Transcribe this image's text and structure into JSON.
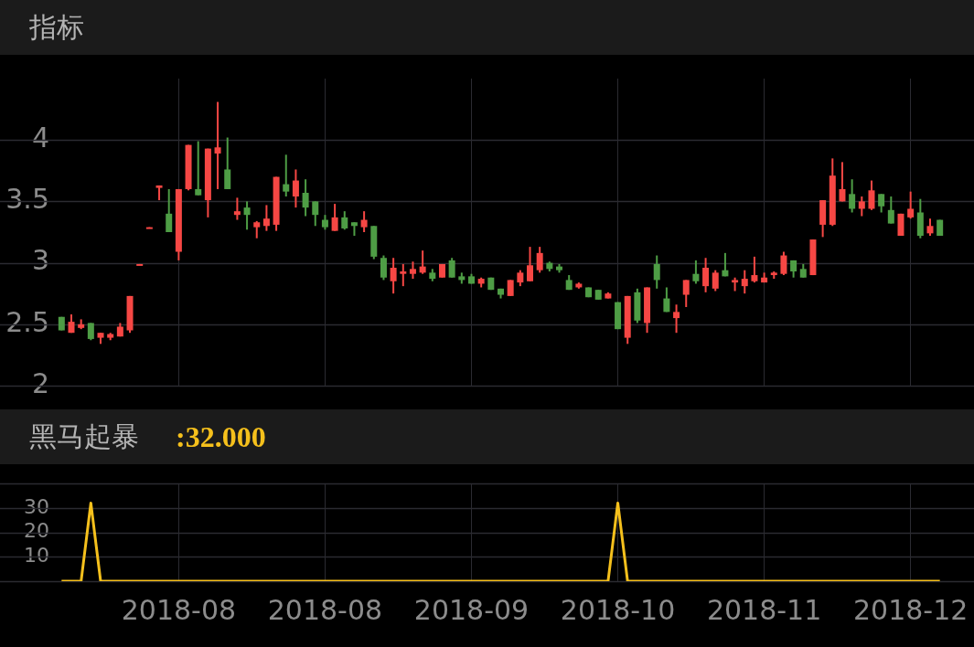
{
  "chart_data": [
    {
      "type": "candlestick",
      "title": "指标",
      "categories": [
        null,
        null,
        null,
        null,
        null,
        null,
        null,
        null,
        null,
        null,
        null,
        null,
        "2018-08",
        null,
        null,
        null,
        null,
        null,
        null,
        null,
        null,
        null,
        null,
        null,
        null,
        null,
        null,
        "2018-08",
        null,
        null,
        null,
        null,
        null,
        null,
        null,
        null,
        null,
        null,
        null,
        null,
        null,
        null,
        "2018-09",
        null,
        null,
        null,
        null,
        null,
        null,
        null,
        null,
        null,
        null,
        null,
        null,
        null,
        null,
        "2018-10",
        null,
        null,
        null,
        null,
        null,
        null,
        null,
        null,
        null,
        null,
        null,
        null,
        null,
        null,
        "2018-11",
        null,
        null,
        null,
        null,
        null,
        null,
        null,
        null,
        null,
        null,
        null,
        null,
        null,
        null,
        "2018-12",
        null,
        null,
        null
      ],
      "ohlc": [
        [
          2.56,
          2.56,
          2.45,
          2.45
        ],
        [
          2.43,
          2.58,
          2.43,
          2.52
        ],
        [
          2.47,
          2.54,
          2.46,
          2.5
        ],
        [
          2.51,
          2.51,
          2.37,
          2.38
        ],
        [
          2.39,
          2.43,
          2.34,
          2.43
        ],
        [
          2.39,
          2.43,
          2.37,
          2.42
        ],
        [
          2.4,
          2.51,
          2.4,
          2.48
        ],
        [
          2.45,
          2.73,
          2.43,
          2.73
        ],
        [
          2.98,
          2.99,
          2.98,
          2.99
        ],
        [
          3.28,
          3.29,
          3.28,
          3.29
        ],
        [
          3.61,
          3.63,
          3.51,
          3.63
        ],
        [
          3.4,
          3.6,
          3.25,
          3.25
        ],
        [
          3.09,
          3.6,
          3.02,
          3.6
        ],
        [
          3.6,
          3.96,
          3.59,
          3.96
        ],
        [
          3.6,
          3.99,
          3.55,
          3.55
        ],
        [
          3.51,
          3.93,
          3.37,
          3.93
        ],
        [
          3.89,
          4.31,
          3.6,
          3.94
        ],
        [
          3.76,
          4.02,
          3.6,
          3.6
        ],
        [
          3.39,
          3.53,
          3.35,
          3.42
        ],
        [
          3.45,
          3.5,
          3.27,
          3.39
        ],
        [
          3.29,
          3.34,
          3.2,
          3.33
        ],
        [
          3.3,
          3.47,
          3.26,
          3.36
        ],
        [
          3.31,
          3.7,
          3.26,
          3.7
        ],
        [
          3.64,
          3.88,
          3.54,
          3.58
        ],
        [
          3.54,
          3.76,
          3.45,
          3.67
        ],
        [
          3.57,
          3.68,
          3.38,
          3.45
        ],
        [
          3.5,
          3.5,
          3.3,
          3.39
        ],
        [
          3.35,
          3.39,
          3.27,
          3.29
        ],
        [
          3.26,
          3.48,
          3.26,
          3.37
        ],
        [
          3.37,
          3.42,
          3.27,
          3.28
        ],
        [
          3.33,
          3.33,
          3.22,
          3.3
        ],
        [
          3.29,
          3.42,
          3.25,
          3.35
        ],
        [
          3.3,
          3.3,
          3.03,
          3.05
        ],
        [
          3.04,
          3.06,
          2.86,
          2.88
        ],
        [
          2.85,
          3.04,
          2.75,
          2.96
        ],
        [
          2.91,
          2.99,
          2.81,
          2.93
        ],
        [
          2.91,
          3.01,
          2.87,
          2.95
        ],
        [
          2.92,
          3.1,
          2.91,
          2.97
        ],
        [
          2.92,
          2.95,
          2.85,
          2.87
        ],
        [
          2.88,
          2.99,
          2.88,
          2.99
        ],
        [
          3.02,
          3.04,
          2.88,
          2.88
        ],
        [
          2.89,
          2.92,
          2.83,
          2.86
        ],
        [
          2.89,
          2.91,
          2.83,
          2.83
        ],
        [
          2.83,
          2.88,
          2.8,
          2.87
        ],
        [
          2.88,
          2.88,
          2.78,
          2.78
        ],
        [
          2.79,
          2.79,
          2.71,
          2.74
        ],
        [
          2.73,
          2.86,
          2.73,
          2.86
        ],
        [
          2.84,
          2.94,
          2.81,
          2.92
        ],
        [
          2.85,
          3.13,
          2.85,
          2.98
        ],
        [
          2.94,
          3.13,
          2.92,
          3.08
        ],
        [
          3.0,
          3.01,
          2.93,
          2.95
        ],
        [
          2.97,
          2.99,
          2.92,
          2.94
        ],
        [
          2.86,
          2.9,
          2.78,
          2.78
        ],
        [
          2.8,
          2.84,
          2.79,
          2.83
        ],
        [
          2.8,
          2.8,
          2.72,
          2.72
        ],
        [
          2.78,
          2.78,
          2.7,
          2.7
        ],
        [
          2.71,
          2.76,
          2.71,
          2.75
        ],
        [
          2.68,
          2.68,
          2.46,
          2.46
        ],
        [
          2.39,
          2.73,
          2.34,
          2.73
        ],
        [
          2.76,
          2.79,
          2.51,
          2.53
        ],
        [
          2.51,
          2.8,
          2.43,
          2.8
        ],
        [
          2.99,
          3.06,
          2.79,
          2.86
        ],
        [
          2.71,
          2.8,
          2.6,
          2.6
        ],
        [
          2.55,
          2.66,
          2.43,
          2.6
        ],
        [
          2.74,
          2.86,
          2.64,
          2.86
        ],
        [
          2.91,
          3.02,
          2.83,
          2.85
        ],
        [
          2.81,
          3.04,
          2.76,
          2.96
        ],
        [
          2.79,
          2.94,
          2.77,
          2.92
        ],
        [
          2.94,
          3.08,
          2.89,
          2.89
        ],
        [
          2.84,
          2.88,
          2.77,
          2.86
        ],
        [
          2.81,
          2.94,
          2.75,
          2.87
        ],
        [
          2.85,
          3.05,
          2.84,
          2.9
        ],
        [
          2.84,
          2.92,
          2.84,
          2.88
        ],
        [
          2.9,
          2.93,
          2.87,
          2.92
        ],
        [
          2.91,
          3.09,
          2.9,
          3.06
        ],
        [
          3.02,
          3.02,
          2.88,
          2.93
        ],
        [
          2.95,
          2.99,
          2.88,
          2.88
        ],
        [
          2.9,
          3.19,
          2.9,
          3.19
        ],
        [
          3.31,
          3.51,
          3.21,
          3.51
        ],
        [
          3.31,
          3.85,
          3.3,
          3.71
        ],
        [
          3.5,
          3.82,
          3.5,
          3.6
        ],
        [
          3.56,
          3.68,
          3.41,
          3.44
        ],
        [
          3.44,
          3.54,
          3.38,
          3.5
        ],
        [
          3.44,
          3.67,
          3.43,
          3.59
        ],
        [
          3.56,
          3.56,
          3.41,
          3.46
        ],
        [
          3.43,
          3.54,
          3.32,
          3.32
        ],
        [
          3.22,
          3.4,
          3.22,
          3.4
        ],
        [
          3.37,
          3.58,
          3.36,
          3.44
        ],
        [
          3.41,
          3.52,
          3.2,
          3.22
        ],
        [
          3.24,
          3.36,
          3.22,
          3.3
        ],
        [
          3.35,
          3.35,
          3.22,
          3.22
        ]
      ],
      "colors": [
        "#4e9d45",
        "#f64744",
        "#f64744",
        "#4e9d45",
        "#f64744",
        "#f64744",
        "#f64744",
        "#f64744",
        "#f64744",
        "#f64744",
        "#f64744",
        "#4e9d45",
        "#f64744",
        "#f64744",
        "#4e9d45",
        "#f64744",
        "#f64744",
        "#4e9d45",
        "#f64744",
        "#4e9d45",
        "#f64744",
        "#f64744",
        "#f64744",
        "#4e9d45",
        "#f64744",
        "#4e9d45",
        "#4e9d45",
        "#4e9d45",
        "#f64744",
        "#4e9d45",
        "#4e9d45",
        "#f64744",
        "#4e9d45",
        "#4e9d45",
        "#f64744",
        "#f64744",
        "#f64744",
        "#f64744",
        "#4e9d45",
        "#f64744",
        "#4e9d45",
        "#4e9d45",
        "#4e9d45",
        "#f64744",
        "#4e9d45",
        "#4e9d45",
        "#f64744",
        "#f64744",
        "#f64744",
        "#f64744",
        "#4e9d45",
        "#4e9d45",
        "#4e9d45",
        "#f64744",
        "#4e9d45",
        "#4e9d45",
        "#f64744",
        "#4e9d45",
        "#f64744",
        "#4e9d45",
        "#f64744",
        "#4e9d45",
        "#4e9d45",
        "#f64744",
        "#f64744",
        "#4e9d45",
        "#f64744",
        "#f64744",
        "#4e9d45",
        "#f64744",
        "#f64744",
        "#f64744",
        "#f64744",
        "#f64744",
        "#f64744",
        "#4e9d45",
        "#4e9d45",
        "#f64744",
        "#f64744",
        "#f64744",
        "#f64744",
        "#4e9d45",
        "#f64744",
        "#f64744",
        "#4e9d45",
        "#4e9d45",
        "#f64744",
        "#f64744",
        "#4e9d45",
        "#f64744",
        "#4e9d45"
      ],
      "ylim": [
        2,
        4.5
      ],
      "yticks": [
        2,
        2.5,
        3,
        3.5,
        4
      ],
      "grid": true,
      "tick_labels": "y"
    },
    {
      "type": "line",
      "title": "黑马起暴",
      "subtitle": ":32.000",
      "categories": [
        null,
        null,
        null,
        null,
        null,
        null,
        null,
        null,
        null,
        null,
        null,
        null,
        "2018-08",
        null,
        null,
        null,
        null,
        null,
        null,
        null,
        null,
        null,
        null,
        null,
        null,
        null,
        null,
        "2018-08",
        null,
        null,
        null,
        null,
        null,
        null,
        null,
        null,
        null,
        null,
        null,
        null,
        null,
        null,
        "2018-09",
        null,
        null,
        null,
        null,
        null,
        null,
        null,
        null,
        null,
        null,
        null,
        null,
        null,
        null,
        "2018-10",
        null,
        null,
        null,
        null,
        null,
        null,
        null,
        null,
        null,
        null,
        null,
        null,
        null,
        null,
        "2018-11",
        null,
        null,
        null,
        null,
        null,
        null,
        null,
        null,
        null,
        null,
        null,
        null,
        null,
        null,
        "2018-12",
        null,
        null,
        null
      ],
      "series": [
        {
          "color": "#f5c01c",
          "values": [
            0,
            0,
            0,
            32,
            0,
            0,
            0,
            0,
            0,
            0,
            0,
            0,
            0,
            0,
            0,
            0,
            0,
            0,
            0,
            0,
            0,
            0,
            0,
            0,
            0,
            0,
            0,
            0,
            0,
            0,
            0,
            0,
            0,
            0,
            0,
            0,
            0,
            0,
            0,
            0,
            0,
            0,
            0,
            0,
            0,
            0,
            0,
            0,
            0,
            0,
            0,
            0,
            0,
            0,
            0,
            0,
            0,
            32,
            0,
            0,
            0,
            0,
            0,
            0,
            0,
            0,
            0,
            0,
            0,
            0,
            0,
            0,
            0,
            0,
            0,
            0,
            0,
            0,
            0,
            0,
            0,
            0,
            0,
            0,
            0,
            0,
            0,
            0,
            0,
            0,
            0
          ]
        }
      ],
      "ylim": [
        0,
        40
      ],
      "yticks": [
        {
          "value": 0,
          "label": null
        },
        10,
        20,
        30,
        {
          "value": 40,
          "label": null
        }
      ],
      "grid": true,
      "marker": "none",
      "line_style": "solid"
    }
  ]
}
